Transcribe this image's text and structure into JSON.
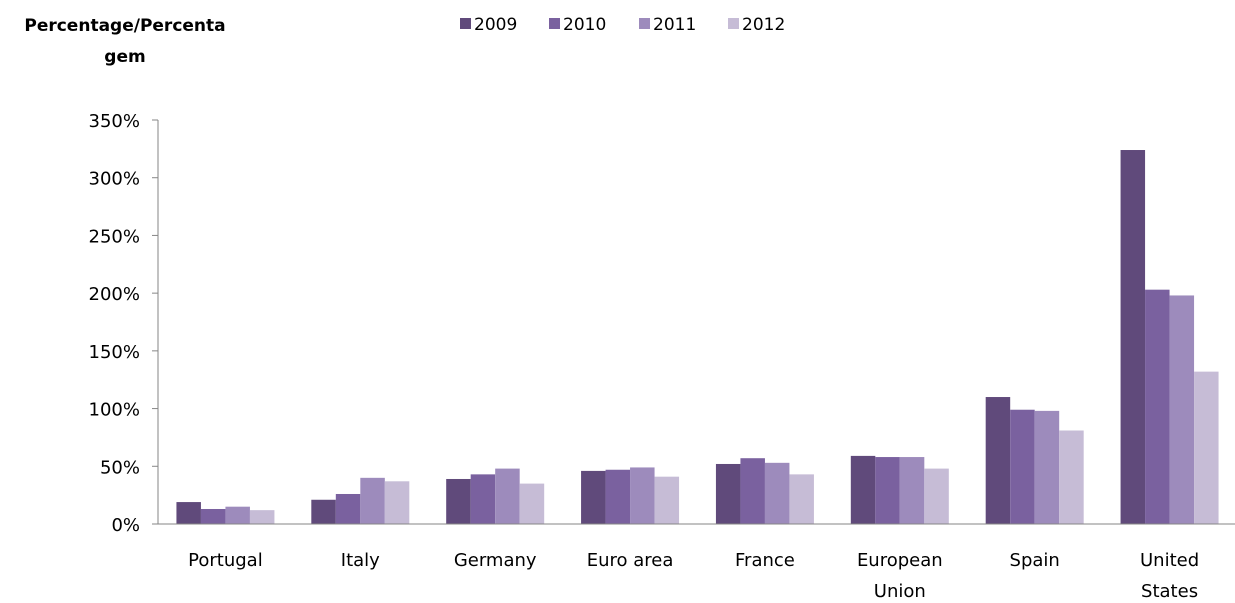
{
  "chart_data": {
    "type": "bar",
    "ylabel_lines": [
      "Percentage/Percenta",
      "gem"
    ],
    "categories": [
      [
        "Portugal"
      ],
      [
        "Italy"
      ],
      [
        "Germany"
      ],
      [
        "Euro area"
      ],
      [
        "France"
      ],
      [
        "European",
        "Union"
      ],
      [
        "Spain"
      ],
      [
        "United",
        "States"
      ]
    ],
    "series": [
      {
        "name": "2009",
        "color": "#604a7b",
        "values": [
          19,
          21,
          39,
          46,
          52,
          59,
          110,
          324
        ]
      },
      {
        "name": "2010",
        "color": "#7a619f",
        "values": [
          13,
          26,
          43,
          47,
          57,
          58,
          99,
          203
        ]
      },
      {
        "name": "2011",
        "color": "#9d8bbc",
        "values": [
          15,
          40,
          48,
          49,
          53,
          58,
          98,
          198
        ]
      },
      {
        "name": "2012",
        "color": "#c6bcd6",
        "values": [
          12,
          37,
          35,
          41,
          43,
          48,
          81,
          132
        ]
      }
    ],
    "ylim": [
      0,
      350
    ],
    "yticks": [
      0,
      50,
      100,
      150,
      200,
      250,
      300,
      350
    ],
    "ytick_labels": [
      "0%",
      "50%",
      "100%",
      "150%",
      "200%",
      "250%",
      "300%",
      "350%"
    ],
    "grid": false,
    "legend_position": "top"
  }
}
